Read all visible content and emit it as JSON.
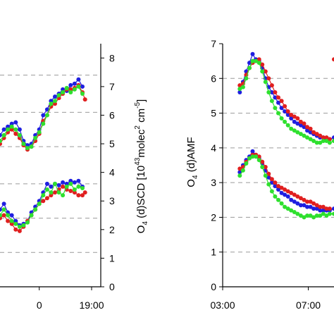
{
  "chart_data": [
    {
      "type": "scatter",
      "title": "",
      "ylabel": {
        "base": "O",
        "sub": "4",
        "rest": " (d)SCD [10",
        "exp1": "43",
        "mid": "molec",
        "exp2": "2",
        "mid2": " cm",
        "exp3": "-5",
        "end": "]"
      },
      "ylim": [
        0,
        8.5
      ],
      "yticks": [
        "0",
        "1",
        "2",
        "3",
        "4",
        "5",
        "6",
        "7",
        "8"
      ],
      "xlim": [
        12.0,
        19.7
      ],
      "xticks": [
        {
          "value": 15.0,
          "label": "0"
        },
        {
          "value": 19.0,
          "label": "19:00"
        }
      ],
      "gridlines_y": [
        1.2,
        2.4,
        3.6,
        4.9,
        6.1,
        7.4
      ],
      "series": [
        {
          "color": "#1f1fe0",
          "groups": [
            {
              "x": [
                12.0,
                12.3,
                12.6,
                12.9,
                13.2,
                13.5,
                13.8,
                14.1,
                14.4,
                14.7,
                15.0,
                15.3,
                15.6,
                15.9,
                16.2,
                16.5,
                16.8,
                17.1,
                17.4,
                17.7,
                18.0,
                18.3
              ],
              "y": [
                5.3,
                5.5,
                5.6,
                5.7,
                5.75,
                5.5,
                5.1,
                4.95,
                5.0,
                5.3,
                5.5,
                6.0,
                6.2,
                6.5,
                6.65,
                6.75,
                6.9,
                6.85,
                7.05,
                7.1,
                7.25,
                7.0
              ]
            },
            {
              "x": [
                12.0,
                12.3,
                12.6,
                12.9,
                13.2,
                13.5,
                13.8,
                14.1,
                14.4,
                14.7,
                15.0,
                15.3,
                15.6,
                15.9,
                16.2,
                16.5,
                16.8,
                17.1,
                17.4,
                17.7,
                18.0,
                18.3
              ],
              "y": [
                2.7,
                2.9,
                2.6,
                2.5,
                2.3,
                2.15,
                2.2,
                2.3,
                2.6,
                2.8,
                3.0,
                3.3,
                3.6,
                3.5,
                3.6,
                3.55,
                3.65,
                3.6,
                3.7,
                3.65,
                3.7,
                3.5
              ]
            }
          ]
        },
        {
          "color": "#e01f1f",
          "groups": [
            {
              "x": [
                12.0,
                12.3,
                12.6,
                12.9,
                13.2,
                13.5,
                13.8,
                14.1,
                14.4,
                14.7,
                15.0,
                15.3,
                15.6,
                15.9,
                16.2,
                16.5,
                16.8,
                17.1,
                17.4,
                17.7,
                18.0,
                18.3,
                18.5
              ],
              "y": [
                5.0,
                5.2,
                5.4,
                5.5,
                5.35,
                5.2,
                4.95,
                4.8,
                4.9,
                5.1,
                5.35,
                5.8,
                6.0,
                6.3,
                6.4,
                6.6,
                6.75,
                6.9,
                6.9,
                6.95,
                7.05,
                6.8,
                6.55
              ]
            },
            {
              "x": [
                12.0,
                12.3,
                12.6,
                12.9,
                13.2,
                13.5,
                13.8,
                14.1,
                14.4,
                14.7,
                15.0,
                15.3,
                15.6,
                15.9,
                16.2,
                16.5,
                16.8,
                17.1,
                17.4,
                17.7,
                18.0,
                18.3,
                18.5
              ],
              "y": [
                2.4,
                2.5,
                2.3,
                2.2,
                2.0,
                1.95,
                2.1,
                2.3,
                2.5,
                2.7,
                2.9,
                3.0,
                3.1,
                3.2,
                3.3,
                3.4,
                3.5,
                3.4,
                3.35,
                3.3,
                3.2,
                3.2,
                3.3
              ]
            }
          ]
        },
        {
          "color": "#2ee02e",
          "groups": [
            {
              "x": [
                12.0,
                12.3,
                12.6,
                12.9,
                13.2,
                13.5,
                13.8,
                14.1,
                14.4,
                14.7,
                15.0,
                15.3,
                15.6,
                15.9,
                16.2,
                16.5,
                16.8,
                17.1,
                17.4,
                17.7,
                18.0,
                18.3
              ],
              "y": [
                5.1,
                5.3,
                5.5,
                5.6,
                5.5,
                5.3,
                5.0,
                4.85,
                4.9,
                5.2,
                5.4,
                5.7,
                6.0,
                6.4,
                6.5,
                6.7,
                6.8,
                6.95,
                6.8,
                6.9,
                7.0,
                6.75
              ]
            },
            {
              "x": [
                12.0,
                12.3,
                12.6,
                12.9,
                13.2,
                13.5,
                13.8,
                14.1,
                14.4,
                14.7,
                15.0,
                15.3,
                15.6,
                15.9,
                16.2,
                16.5,
                16.8,
                17.1,
                17.4,
                17.7,
                18.0,
                18.3
              ],
              "y": [
                2.5,
                2.7,
                2.5,
                2.3,
                2.2,
                2.1,
                2.15,
                2.25,
                2.5,
                2.7,
                2.9,
                3.2,
                3.4,
                3.3,
                3.6,
                3.3,
                3.2,
                3.5,
                3.6,
                3.4,
                3.5,
                3.45
              ]
            }
          ]
        }
      ]
    },
    {
      "type": "scatter",
      "title": "",
      "ylabel": {
        "base": "O",
        "sub": "4",
        "rest": " (d)AMF"
      },
      "ylim": [
        0,
        7
      ],
      "yticks": [
        "0",
        "1",
        "2",
        "3",
        "4",
        "5",
        "6",
        "7"
      ],
      "xlim": [
        3.0,
        8.2
      ],
      "xticks": [
        {
          "value": 3.0,
          "label": "03:00"
        },
        {
          "value": 7.0,
          "label": "07:00"
        }
      ],
      "gridlines_y": [
        1,
        2,
        3,
        4,
        5,
        6
      ],
      "series": [
        {
          "color": "#1f1fe0",
          "groups": [
            {
              "x": [
                3.8,
                3.95,
                4.1,
                4.25,
                4.4,
                4.55,
                4.7,
                4.85,
                5.0,
                5.15,
                5.3,
                5.45,
                5.6,
                5.75,
                5.9,
                6.05,
                6.2,
                6.35,
                6.5,
                6.65,
                6.8,
                6.95,
                7.1,
                7.25,
                7.4,
                7.55,
                7.7,
                7.85,
                8.0,
                8.2
              ],
              "y": [
                5.6,
                5.9,
                6.2,
                6.45,
                6.7,
                6.55,
                6.5,
                6.3,
                6.0,
                5.75,
                5.6,
                5.45,
                5.3,
                5.15,
                5.05,
                4.95,
                4.85,
                4.75,
                4.7,
                4.65,
                4.6,
                4.5,
                4.45,
                4.4,
                4.35,
                4.3,
                4.3,
                4.25,
                4.25,
                4.3
              ]
            },
            {
              "x": [
                3.8,
                3.95,
                4.1,
                4.25,
                4.4,
                4.55,
                4.7,
                4.85,
                5.0,
                5.15,
                5.3,
                5.45,
                5.6,
                5.75,
                5.9,
                6.05,
                6.2,
                6.35,
                6.5,
                6.65,
                6.8,
                6.95,
                7.1,
                7.25,
                7.4,
                7.55,
                7.7,
                7.85,
                8.0,
                8.2
              ],
              "y": [
                3.3,
                3.5,
                3.65,
                3.75,
                3.9,
                3.8,
                3.7,
                3.55,
                3.35,
                3.15,
                3.0,
                2.9,
                2.8,
                2.7,
                2.65,
                2.6,
                2.5,
                2.45,
                2.4,
                2.35,
                2.35,
                2.3,
                2.3,
                2.25,
                2.25,
                2.2,
                2.2,
                2.2,
                2.2,
                2.25
              ]
            }
          ]
        },
        {
          "color": "#e01f1f",
          "groups": [
            {
              "x": [
                3.8,
                3.95,
                4.1,
                4.25,
                4.4,
                4.55,
                4.7,
                4.85,
                5.0,
                5.15,
                5.3,
                5.45,
                5.6,
                5.75,
                5.9,
                6.05,
                6.2,
                6.35,
                6.5,
                6.65,
                6.8,
                6.95,
                7.1,
                7.25,
                7.4,
                7.55,
                7.7,
                7.85,
                8.0
              ],
              "y": [
                5.8,
                5.85,
                6.1,
                6.3,
                6.45,
                6.5,
                6.55,
                6.4,
                6.2,
                6.0,
                5.8,
                5.6,
                5.45,
                5.35,
                5.2,
                5.05,
                4.95,
                4.9,
                4.85,
                4.75,
                4.7,
                4.6,
                4.55,
                4.45,
                4.4,
                4.35,
                4.3,
                4.3,
                4.25
              ]
            },
            {
              "x": [
                3.8,
                3.95,
                4.1,
                4.25,
                4.4,
                4.55,
                4.7,
                4.85,
                5.0,
                5.15,
                5.3,
                5.45,
                5.6,
                5.75,
                5.9,
                6.05,
                6.2,
                6.35,
                6.5,
                6.65,
                6.8,
                6.95,
                7.1,
                7.25,
                7.4,
                7.55,
                7.7,
                7.85,
                8.0
              ],
              "y": [
                3.4,
                3.45,
                3.6,
                3.7,
                3.8,
                3.8,
                3.75,
                3.6,
                3.45,
                3.25,
                3.1,
                3.0,
                2.9,
                2.85,
                2.8,
                2.75,
                2.7,
                2.65,
                2.6,
                2.55,
                2.5,
                2.45,
                2.45,
                2.4,
                2.35,
                2.3,
                2.3,
                2.25,
                2.25
              ]
            },
            {
              "x": [
                8.2
              ],
              "y": [
                6.55
              ]
            }
          ]
        },
        {
          "color": "#2ee02e",
          "groups": [
            {
              "x": [
                3.8,
                3.95,
                4.1,
                4.25,
                4.4,
                4.55,
                4.7,
                4.85,
                5.0,
                5.15,
                5.3,
                5.45,
                5.6,
                5.75,
                5.9,
                6.05,
                6.2,
                6.35,
                6.5,
                6.65,
                6.8,
                6.95,
                7.1,
                7.25,
                7.4,
                7.55,
                7.7,
                7.85,
                8.0,
                8.2
              ],
              "y": [
                5.7,
                5.75,
                6.0,
                6.3,
                6.5,
                6.5,
                6.45,
                6.2,
                5.9,
                5.6,
                5.35,
                5.15,
                5.0,
                4.85,
                4.75,
                4.65,
                4.55,
                4.5,
                4.45,
                4.4,
                4.35,
                4.3,
                4.25,
                4.2,
                4.15,
                4.15,
                4.2,
                4.2,
                4.15,
                4.2
              ]
            },
            {
              "x": [
                3.8,
                3.95,
                4.1,
                4.25,
                4.4,
                4.55,
                4.7,
                4.85,
                5.0,
                5.15,
                5.3,
                5.45,
                5.6,
                5.75,
                5.9,
                6.05,
                6.2,
                6.35,
                6.5,
                6.65,
                6.8,
                6.95,
                7.1,
                7.25,
                7.4,
                7.55,
                7.7,
                7.85,
                8.0,
                8.2
              ],
              "y": [
                3.2,
                3.35,
                3.55,
                3.7,
                3.75,
                3.75,
                3.65,
                3.45,
                3.2,
                2.95,
                2.75,
                2.6,
                2.5,
                2.4,
                2.3,
                2.25,
                2.2,
                2.15,
                2.1,
                2.05,
                2.0,
                2.05,
                2.05,
                2.0,
                2.05,
                2.05,
                2.1,
                2.05,
                2.1,
                2.1
              ]
            }
          ]
        }
      ]
    }
  ]
}
